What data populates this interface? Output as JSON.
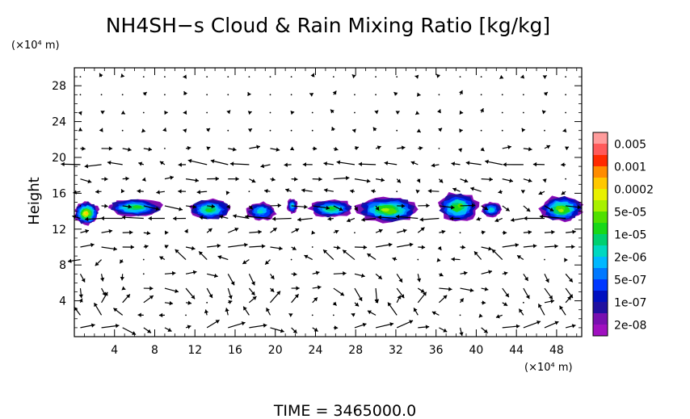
{
  "chart_data": {
    "type": "heatmap",
    "title": "NH4SH−s Cloud & Rain Mixing Ratio [kg/kg]",
    "ylabel": "Height",
    "y_unit_label": "(×10⁴ m)",
    "x_unit_label": "(×10⁴ m)",
    "time_label": "TIME = 3465000.0",
    "xlim": [
      0,
      50.5
    ],
    "ylim": [
      0,
      30
    ],
    "x_ticks": [
      "4",
      "8",
      "12",
      "16",
      "20",
      "24",
      "28",
      "32",
      "36",
      "40",
      "44",
      "48"
    ],
    "y_ticks": [
      "4",
      "8",
      "12",
      "16",
      "20",
      "24",
      "28"
    ],
    "x_tick_values": [
      4,
      8,
      12,
      16,
      20,
      24,
      28,
      32,
      36,
      40,
      44,
      48
    ],
    "y_tick_values": [
      4,
      8,
      12,
      16,
      20,
      24,
      28
    ],
    "colorbar": {
      "labels": [
        "0.005",
        "0.001",
        "0.0002",
        "5e-05",
        "1e-05",
        "2e-06",
        "5e-07",
        "1e-07",
        "2e-08"
      ],
      "colors": [
        "#ff9c9c",
        "#ff5a5a",
        "#ff2a00",
        "#ff8c00",
        "#ffc800",
        "#e8f000",
        "#a8f000",
        "#50e000",
        "#18d818",
        "#00d070",
        "#00d8c0",
        "#00b8ff",
        "#0078ff",
        "#0038ff",
        "#0010c0",
        "#2010a0",
        "#7810b0",
        "#a010c0"
      ]
    },
    "clouds": [
      {
        "x": 1.2,
        "y": 13.8,
        "w": 2.4,
        "h": 2.6,
        "peak": 0.95
      },
      {
        "x": 6.0,
        "y": 14.4,
        "w": 5.4,
        "h": 2.0,
        "peak": 0.55
      },
      {
        "x": 13.5,
        "y": 14.2,
        "w": 4.2,
        "h": 2.4,
        "peak": 0.55
      },
      {
        "x": 18.6,
        "y": 14.0,
        "w": 2.8,
        "h": 2.0,
        "peak": 0.35
      },
      {
        "x": 21.7,
        "y": 14.6,
        "w": 1.0,
        "h": 1.6,
        "peak": 0.3
      },
      {
        "x": 25.6,
        "y": 14.3,
        "w": 4.4,
        "h": 2.0,
        "peak": 0.5
      },
      {
        "x": 31.2,
        "y": 14.2,
        "w": 6.2,
        "h": 2.8,
        "peak": 0.8
      },
      {
        "x": 38.2,
        "y": 14.5,
        "w": 4.0,
        "h": 3.2,
        "peak": 0.65
      },
      {
        "x": 41.5,
        "y": 14.2,
        "w": 2.0,
        "h": 1.6,
        "peak": 0.35
      },
      {
        "x": 48.5,
        "y": 14.3,
        "w": 4.2,
        "h": 2.8,
        "peak": 0.8
      }
    ],
    "wind_levels": [
      {
        "y": 21.0,
        "u": 0.25,
        "v": 0.0
      },
      {
        "y": 19.2,
        "u": -0.6,
        "v": 0.05
      },
      {
        "y": 17.6,
        "u": 0.4,
        "v": -0.05
      },
      {
        "y": 16.2,
        "u": -0.3,
        "v": 0.0
      },
      {
        "y": 14.6,
        "u": 0.5,
        "v": -0.1
      },
      {
        "y": 13.2,
        "u": -0.7,
        "v": 0.0
      },
      {
        "y": 11.6,
        "u": 0.3,
        "v": 0.1
      },
      {
        "y": 10.0,
        "u": 0.5,
        "v": 0.0
      },
      {
        "y": 8.6,
        "u": -0.3,
        "v": 0.1
      },
      {
        "y": 7.0,
        "u": 0.3,
        "v": -0.2
      },
      {
        "y": 5.4,
        "u": 0.35,
        "v": -0.3
      },
      {
        "y": 3.8,
        "u": 0.25,
        "v": 0.2
      },
      {
        "y": 2.4,
        "u": -0.2,
        "v": 0.2
      },
      {
        "y": 1.0,
        "u": 0.5,
        "v": 0.0
      },
      {
        "y": 23.0,
        "u": 0.0,
        "v": 0.05
      },
      {
        "y": 25.0,
        "u": 0.0,
        "v": 0.05
      },
      {
        "y": 27.0,
        "u": 0.0,
        "v": 0.05
      },
      {
        "y": 29.0,
        "u": 0.0,
        "v": 0.05
      }
    ]
  }
}
